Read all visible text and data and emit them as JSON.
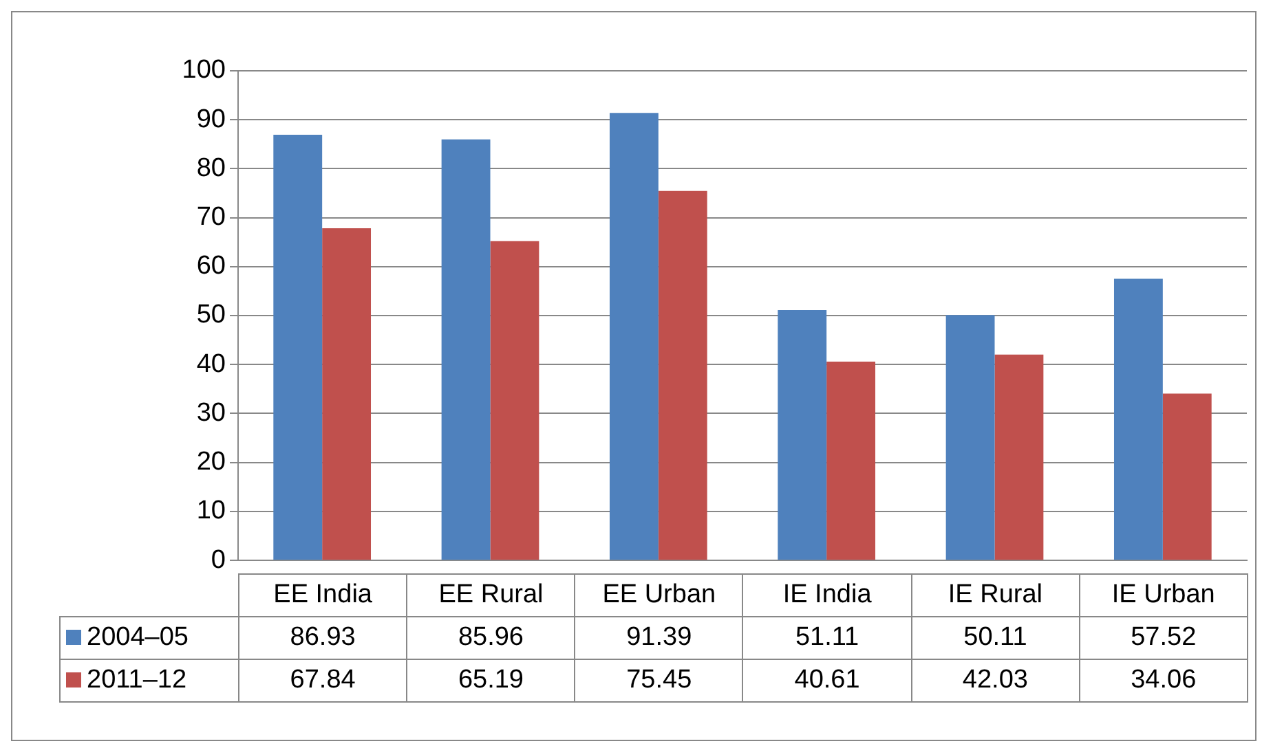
{
  "chart_data": {
    "type": "bar",
    "categories": [
      "EE India",
      "EE Rural",
      "EE Urban",
      "IE India",
      "IE Rural",
      "IE Urban"
    ],
    "series": [
      {
        "name": "2004–05",
        "color": "#4f81bd",
        "values": [
          86.93,
          85.96,
          91.39,
          51.11,
          50.11,
          57.52
        ]
      },
      {
        "name": "2011–12",
        "color": "#c0504d",
        "values": [
          67.84,
          65.19,
          75.45,
          40.61,
          42.03,
          34.06
        ]
      }
    ],
    "ylim": [
      0,
      100
    ],
    "yticks": [
      0,
      10,
      20,
      30,
      40,
      50,
      60,
      70,
      80,
      90,
      100
    ],
    "grid": "y",
    "legend": "bottom",
    "data_labels": true
  }
}
